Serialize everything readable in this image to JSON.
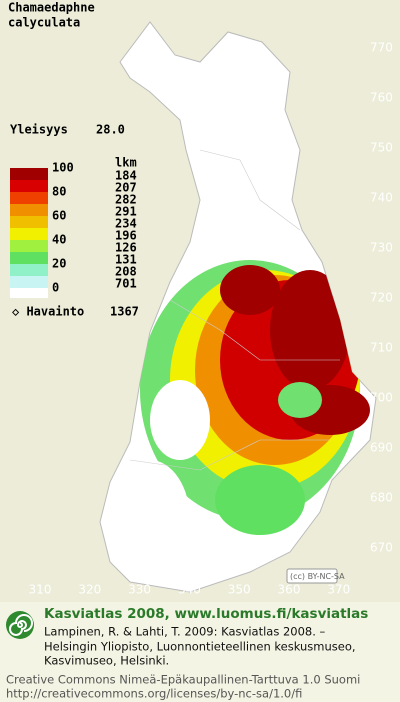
{
  "header": {
    "species": [
      "Chamaedaphne",
      "calyculata"
    ],
    "frequency_label": "Yleisyys",
    "frequency_value": "28.0"
  },
  "legend": {
    "count_header": "lkm",
    "percent_labels": [
      100,
      80,
      60,
      40,
      20,
      0
    ],
    "counts": [
      184,
      207,
      282,
      291,
      234,
      196,
      126,
      131,
      208,
      701
    ],
    "colors": [
      "#a00000",
      "#d80000",
      "#f04000",
      "#f09000",
      "#f0c000",
      "#f0f000",
      "#a0f040",
      "#60e060",
      "#90f0c8",
      "#c8f4f4"
    ],
    "observation_label": "◇ Havainto",
    "observation_count": "1367"
  },
  "map": {
    "northing_ticks": [
      770,
      760,
      750,
      740,
      730,
      720,
      710,
      700,
      690,
      680,
      670
    ],
    "easting_ticks": [
      310,
      320,
      330,
      340,
      350,
      360,
      370
    ]
  },
  "badge": "(cc) BY-NC-SA",
  "footer": {
    "site": "Kasviatlas 2008, www.luomus.fi/kasviatlas",
    "citation": [
      "Lampinen, R. & Lahti, T. 2009: Kasviatlas 2008. –",
      "Helsingin Yliopisto, Luonnontieteellinen keskusmuseo,",
      "Kasvimuseo, Helsinki."
    ],
    "license": [
      "Creative Commons Nimeä-Epäkaupallinen-Tarttuva 1.0 Suomi",
      "http://creativecommons.org/licenses/by-nc-sa/1.0/fi"
    ]
  }
}
